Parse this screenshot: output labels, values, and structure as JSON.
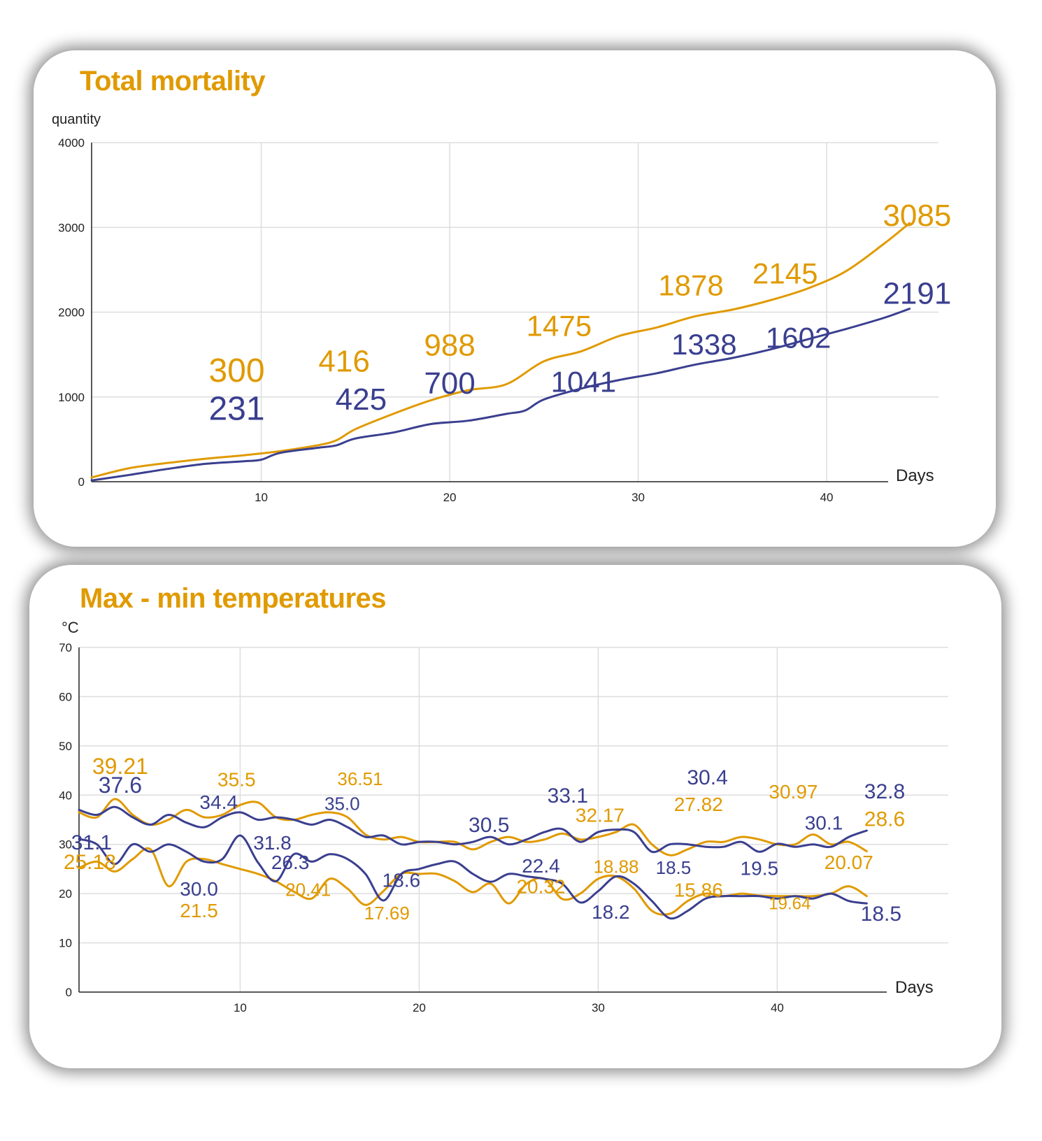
{
  "colors": {
    "orange": "#e09a00",
    "navy": "#3a3f8f",
    "grid": "#dddddd",
    "axis": "#222222"
  },
  "chart_data": [
    {
      "type": "line",
      "title": "Total mortality",
      "ylabel": "quantity",
      "xlabel": "Days",
      "xlim": [
        1,
        45
      ],
      "ylim": [
        0,
        4000
      ],
      "yticks": [
        0,
        1000,
        2000,
        3000,
        4000
      ],
      "xticks": [
        10,
        20,
        30,
        40
      ],
      "grid": true,
      "series": [
        {
          "color": "orange",
          "x": [
            1,
            3,
            5,
            7,
            9,
            11,
            13,
            14,
            15,
            17,
            19,
            21,
            23,
            25,
            27,
            29,
            31,
            33,
            35,
            37,
            39,
            41,
            43,
            44.4
          ],
          "y": [
            50,
            160,
            220,
            270,
            310,
            360,
            430,
            490,
            620,
            800,
            960,
            1080,
            1150,
            1420,
            1540,
            1720,
            1820,
            1950,
            2030,
            2140,
            2280,
            2480,
            2800,
            3050
          ]
        },
        {
          "color": "navy",
          "x": [
            1,
            3,
            5,
            7,
            9,
            10,
            11,
            13,
            14,
            15,
            17,
            19,
            21,
            23,
            24,
            25,
            27,
            29,
            31,
            33,
            35,
            37,
            39,
            41,
            43,
            44.4
          ],
          "y": [
            15,
            80,
            150,
            210,
            240,
            260,
            340,
            400,
            430,
            510,
            580,
            680,
            720,
            800,
            840,
            970,
            1100,
            1200,
            1280,
            1380,
            1460,
            1560,
            1680,
            1800,
            1930,
            2040
          ]
        }
      ],
      "labels": [
        {
          "text": "300",
          "x": 8.7,
          "y": 1180,
          "size": 48,
          "color": "orange"
        },
        {
          "text": "231",
          "x": 8.7,
          "y": 730,
          "size": 48,
          "color": "navy"
        },
        {
          "text": "416",
          "x": 14.4,
          "y": 1300,
          "size": 44,
          "color": "orange"
        },
        {
          "text": "425",
          "x": 15.3,
          "y": 850,
          "size": 44,
          "color": "navy"
        },
        {
          "text": "988",
          "x": 20.0,
          "y": 1490,
          "size": 44,
          "color": "orange"
        },
        {
          "text": "700",
          "x": 20.0,
          "y": 1040,
          "size": 44,
          "color": "navy"
        },
        {
          "text": "1475",
          "x": 25.8,
          "y": 1720,
          "size": 42,
          "color": "orange"
        },
        {
          "text": "1041",
          "x": 27.1,
          "y": 1060,
          "size": 42,
          "color": "navy"
        },
        {
          "text": "1878",
          "x": 32.8,
          "y": 2200,
          "size": 42,
          "color": "orange"
        },
        {
          "text": "1338",
          "x": 33.5,
          "y": 1500,
          "size": 42,
          "color": "navy"
        },
        {
          "text": "2145",
          "x": 37.8,
          "y": 2340,
          "size": 42,
          "color": "orange"
        },
        {
          "text": "1602",
          "x": 38.5,
          "y": 1580,
          "size": 42,
          "color": "navy"
        },
        {
          "text": "3085",
          "x": 44.8,
          "y": 3020,
          "size": 44,
          "color": "orange"
        },
        {
          "text": "2191",
          "x": 44.8,
          "y": 2100,
          "size": 44,
          "color": "navy"
        }
      ]
    },
    {
      "type": "line",
      "title": "Max - min temperatures",
      "ylabel": "°C",
      "xlabel": "Days",
      "xlim": [
        1,
        45
      ],
      "ylim": [
        0,
        70
      ],
      "yticks": [
        0,
        10,
        20,
        30,
        40,
        50,
        60,
        70
      ],
      "xticks": [
        10,
        20,
        30,
        40
      ],
      "grid": true,
      "series": [
        {
          "color": "orange",
          "x": [
            1,
            2,
            3,
            4,
            5,
            6,
            7,
            8,
            9,
            10,
            11,
            12,
            13,
            14,
            15,
            16,
            17,
            18,
            19,
            20,
            21,
            22,
            23,
            24,
            25,
            26,
            27,
            28,
            29,
            30,
            31,
            32,
            33,
            34,
            35,
            36,
            37,
            38,
            39,
            40,
            41,
            42,
            43,
            44,
            45
          ],
          "y": [
            36.5,
            35.5,
            39.2,
            36.0,
            34.0,
            35.0,
            37.0,
            35.5,
            36.0,
            38.0,
            38.5,
            35.5,
            35.0,
            36.0,
            36.5,
            35.5,
            32.0,
            31.0,
            31.5,
            30.5,
            30.5,
            30.5,
            29.0,
            30.5,
            31.5,
            30.5,
            31.0,
            32.2,
            31.0,
            31.5,
            32.5,
            34.0,
            30.0,
            27.8,
            29.0,
            30.5,
            30.5,
            31.5,
            31.0,
            30.0,
            30.0,
            32.0,
            30.0,
            30.5,
            28.6
          ]
        },
        {
          "color": "navy",
          "x": [
            1,
            2,
            3,
            4,
            5,
            6,
            7,
            8,
            9,
            10,
            11,
            12,
            13,
            14,
            15,
            16,
            17,
            18,
            19,
            20,
            21,
            22,
            23,
            24,
            25,
            26,
            27,
            28,
            29,
            30,
            31,
            32,
            33,
            34,
            35,
            36,
            37,
            38,
            39,
            40,
            41,
            42,
            43,
            44,
            45
          ],
          "y": [
            37.0,
            36.0,
            37.6,
            35.5,
            34.0,
            36.0,
            34.4,
            33.5,
            35.5,
            36.5,
            35.0,
            35.5,
            35.0,
            34.0,
            35.0,
            33.5,
            31.5,
            31.8,
            30.0,
            30.5,
            30.5,
            30.0,
            30.5,
            31.5,
            30.0,
            31.0,
            32.5,
            33.1,
            30.5,
            32.5,
            33.0,
            32.5,
            28.5,
            30.0,
            30.0,
            29.5,
            29.5,
            30.5,
            28.5,
            30.1,
            29.5,
            30.0,
            29.5,
            31.5,
            32.8
          ]
        },
        {
          "color": "orange",
          "x": [
            1,
            2,
            3,
            4,
            5,
            6,
            7,
            8,
            9,
            10,
            11,
            12,
            13,
            14,
            15,
            16,
            17,
            18,
            19,
            20,
            21,
            22,
            23,
            24,
            25,
            26,
            27,
            28,
            29,
            30,
            31,
            32,
            33,
            34,
            35,
            36,
            37,
            38,
            39,
            40,
            41,
            42,
            43,
            44,
            45
          ],
          "y": [
            25.2,
            26.5,
            24.5,
            27.0,
            29.0,
            21.5,
            26.5,
            27.0,
            26.0,
            25.0,
            24.0,
            22.5,
            20.4,
            19.0,
            23.0,
            21.0,
            17.7,
            20.5,
            24.0,
            24.0,
            24.0,
            22.5,
            20.3,
            22.0,
            18.0,
            22.0,
            23.0,
            18.9,
            20.0,
            23.0,
            23.5,
            21.0,
            16.5,
            15.9,
            18.5,
            20.0,
            19.5,
            20.0,
            19.6,
            19.5,
            19.5,
            19.5,
            20.0,
            21.5,
            19.5
          ]
        },
        {
          "color": "navy",
          "x": [
            1,
            2,
            3,
            4,
            5,
            6,
            7,
            8,
            9,
            10,
            11,
            12,
            13,
            14,
            15,
            16,
            17,
            18,
            19,
            20,
            21,
            22,
            23,
            24,
            25,
            26,
            27,
            28,
            29,
            30,
            31,
            32,
            33,
            34,
            35,
            36,
            37,
            38,
            39,
            40,
            41,
            42,
            43,
            44,
            45
          ],
          "y": [
            31.1,
            30.0,
            26.0,
            30.0,
            28.5,
            30.0,
            28.5,
            26.5,
            27.0,
            31.8,
            26.3,
            22.5,
            28.0,
            26.5,
            28.0,
            27.0,
            24.0,
            18.6,
            24.0,
            25.0,
            26.0,
            26.5,
            24.0,
            22.4,
            24.0,
            23.5,
            23.0,
            22.0,
            18.2,
            20.5,
            23.5,
            22.0,
            18.5,
            15.0,
            16.5,
            19.0,
            19.5,
            19.5,
            19.5,
            19.0,
            19.5,
            19.0,
            20.0,
            18.5,
            18.0
          ]
        }
      ],
      "labels": [
        {
          "text": "39.21",
          "x": 3.3,
          "y": 44.3,
          "size": 32,
          "color": "orange"
        },
        {
          "text": "37.6",
          "x": 3.3,
          "y": 40.5,
          "size": 32,
          "color": "navy"
        },
        {
          "text": "31.1",
          "x": 1.7,
          "y": 29.0,
          "size": 30,
          "color": "navy"
        },
        {
          "text": "25.18",
          "x": 1.6,
          "y": 25.0,
          "size": 30,
          "color": "orange"
        },
        {
          "text": "35.5",
          "x": 9.8,
          "y": 41.8,
          "size": 28,
          "color": "orange"
        },
        {
          "text": "34.4",
          "x": 8.8,
          "y": 37.2,
          "size": 28,
          "color": "navy"
        },
        {
          "text": "30.0",
          "x": 7.7,
          "y": 19.6,
          "size": 28,
          "color": "navy"
        },
        {
          "text": "21.5",
          "x": 7.7,
          "y": 15.2,
          "size": 28,
          "color": "orange"
        },
        {
          "text": "36.51",
          "x": 16.7,
          "y": 42.0,
          "size": 26,
          "color": "orange"
        },
        {
          "text": "35.0",
          "x": 15.7,
          "y": 37.0,
          "size": 26,
          "color": "navy"
        },
        {
          "text": "31.8",
          "x": 11.8,
          "y": 29.0,
          "size": 28,
          "color": "navy"
        },
        {
          "text": "26.3",
          "x": 12.8,
          "y": 25.0,
          "size": 28,
          "color": "navy"
        },
        {
          "text": "20.41",
          "x": 13.8,
          "y": 19.5,
          "size": 26,
          "color": "orange"
        },
        {
          "text": "18.6",
          "x": 19.0,
          "y": 21.4,
          "size": 28,
          "color": "navy"
        },
        {
          "text": "17.69",
          "x": 18.2,
          "y": 14.8,
          "size": 26,
          "color": "orange"
        },
        {
          "text": "30.5",
          "x": 23.9,
          "y": 32.5,
          "size": 30,
          "color": "navy"
        },
        {
          "text": "22.4",
          "x": 26.8,
          "y": 24.3,
          "size": 28,
          "color": "navy"
        },
        {
          "text": "20.32",
          "x": 26.8,
          "y": 20.1,
          "size": 28,
          "color": "orange"
        },
        {
          "text": "33.1",
          "x": 28.3,
          "y": 38.5,
          "size": 30,
          "color": "navy"
        },
        {
          "text": "32.17",
          "x": 30.1,
          "y": 34.6,
          "size": 28,
          "color": "orange"
        },
        {
          "text": "18.88",
          "x": 31.0,
          "y": 24.2,
          "size": 26,
          "color": "orange"
        },
        {
          "text": "18.2",
          "x": 30.7,
          "y": 14.9,
          "size": 28,
          "color": "navy"
        },
        {
          "text": "30.4",
          "x": 36.1,
          "y": 42.2,
          "size": 30,
          "color": "navy"
        },
        {
          "text": "27.82",
          "x": 35.6,
          "y": 36.8,
          "size": 28,
          "color": "orange"
        },
        {
          "text": "18.5",
          "x": 34.2,
          "y": 24.0,
          "size": 26,
          "color": "navy"
        },
        {
          "text": "15.86",
          "x": 35.6,
          "y": 19.4,
          "size": 28,
          "color": "orange"
        },
        {
          "text": "30.97",
          "x": 40.9,
          "y": 39.3,
          "size": 28,
          "color": "orange"
        },
        {
          "text": "30.1",
          "x": 42.6,
          "y": 33.0,
          "size": 28,
          "color": "navy"
        },
        {
          "text": "19.5",
          "x": 39.0,
          "y": 23.8,
          "size": 28,
          "color": "navy"
        },
        {
          "text": "19.64",
          "x": 40.7,
          "y": 16.8,
          "size": 24,
          "color": "orange"
        },
        {
          "text": "20.07",
          "x": 44.0,
          "y": 25.0,
          "size": 28,
          "color": "orange"
        },
        {
          "text": "32.8",
          "x": 46.0,
          "y": 39.3,
          "size": 30,
          "color": "navy"
        },
        {
          "text": "28.6",
          "x": 46.0,
          "y": 33.7,
          "size": 30,
          "color": "orange"
        },
        {
          "text": "18.5",
          "x": 45.8,
          "y": 14.5,
          "size": 30,
          "color": "navy"
        }
      ]
    }
  ]
}
